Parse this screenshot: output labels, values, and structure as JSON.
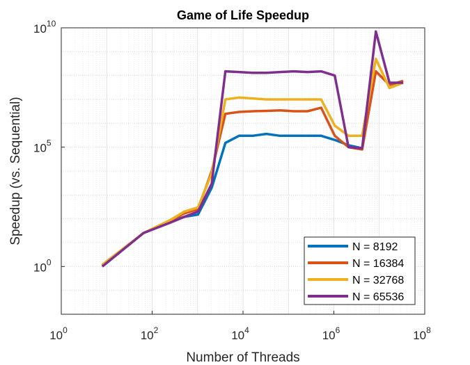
{
  "chart_data": {
    "type": "line",
    "title": "Game of Life Speedup",
    "xlabel": "Number of Threads",
    "ylabel": "Speedup (vs. Sequential)",
    "xscale": "log",
    "yscale": "log",
    "xlim": [
      1,
      100000000
    ],
    "ylim": [
      0.01,
      10000000000
    ],
    "x_ticks": [
      {
        "value": 1,
        "base": "10",
        "exp": "0"
      },
      {
        "value": 100,
        "base": "10",
        "exp": "2"
      },
      {
        "value": 10000,
        "base": "10",
        "exp": "4"
      },
      {
        "value": 1000000,
        "base": "10",
        "exp": "6"
      },
      {
        "value": 100000000,
        "base": "10",
        "exp": "8"
      }
    ],
    "y_ticks": [
      {
        "value": 1,
        "base": "10",
        "exp": "0"
      },
      {
        "value": 100000,
        "base": "10",
        "exp": "5"
      },
      {
        "value": 10000000000,
        "base": "10",
        "exp": "10"
      }
    ],
    "grid": true,
    "minor_grid": true,
    "legend_position": "bottom-right",
    "x": [
      8,
      64,
      256,
      512,
      1024,
      2048,
      4096,
      8192,
      16384,
      32768,
      65536,
      131072,
      262144,
      524288,
      1048576,
      2097152,
      4194304,
      8388608,
      16777216,
      33554432
    ],
    "series": [
      {
        "name": "N = 8192",
        "color": "#0072BD",
        "values": [
          1,
          25,
          80,
          120,
          150,
          2000,
          150000,
          300000,
          300000,
          360000,
          300000,
          300000,
          300000,
          300000,
          200000,
          120000,
          90000,
          null,
          null,
          null
        ]
      },
      {
        "name": "N = 16384",
        "color": "#D95319",
        "values": [
          1.1,
          25,
          85,
          170,
          250,
          10000,
          2500000,
          3000000,
          3200000,
          3300000,
          3500000,
          3200000,
          3200000,
          4500000,
          300000,
          100000,
          80000,
          150000000,
          40000000,
          60000000
        ]
      },
      {
        "name": "N = 32768",
        "color": "#EDB120",
        "values": [
          1.2,
          25,
          90,
          200,
          300,
          8000,
          10000000,
          12000000,
          11000000,
          10000000,
          10000000,
          10000000,
          10000000,
          10000000,
          800000,
          300000,
          300000,
          500000000,
          30000000,
          50000000
        ]
      },
      {
        "name": "N = 65536",
        "color": "#7E2F8E",
        "values": [
          1,
          25,
          70,
          120,
          200,
          3000,
          150000000,
          140000000,
          130000000,
          130000000,
          140000000,
          150000000,
          140000000,
          150000000,
          100000000,
          100000,
          90000,
          7000000000,
          50000000,
          50000000
        ]
      }
    ]
  }
}
